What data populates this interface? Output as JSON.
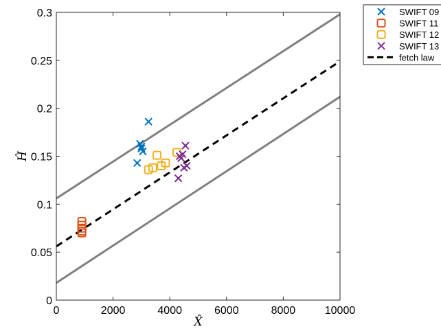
{
  "chart_data": {
    "type": "scatter",
    "title": "",
    "xlabel": "X̂",
    "ylabel": "Ĥ",
    "xlim": [
      0,
      10000
    ],
    "ylim": [
      0,
      0.3
    ],
    "xticks": [
      0,
      2000,
      4000,
      6000,
      8000,
      10000
    ],
    "xtick_labels": [
      "0",
      "2000",
      "4000",
      "6000",
      "8000",
      "10000"
    ],
    "yticks": [
      0,
      0.05,
      0.1,
      0.15,
      0.2,
      0.25,
      0.3
    ],
    "ytick_labels": [
      "0",
      "0.05",
      "0.1",
      "0.15",
      "0.2",
      "0.25",
      "0.3"
    ],
    "grid": false,
    "legend_position": "outside-top-right",
    "series": [
      {
        "name": "SWIFT 09",
        "marker": "x",
        "color": "#0072BD",
        "points": [
          [
            2850,
            0.143
          ],
          [
            2950,
            0.163
          ],
          [
            3000,
            0.158
          ],
          [
            3050,
            0.155
          ],
          [
            3000,
            0.16
          ],
          [
            3250,
            0.186
          ]
        ]
      },
      {
        "name": "SWIFT 11",
        "marker": "square",
        "color": "#D95319",
        "points": [
          [
            900,
            0.082
          ],
          [
            900,
            0.078
          ],
          [
            900,
            0.075
          ],
          [
            900,
            0.072
          ],
          [
            900,
            0.07
          ]
        ]
      },
      {
        "name": "SWIFT 12",
        "marker": "square",
        "color": "#EDB120",
        "points": [
          [
            3250,
            0.136
          ],
          [
            3400,
            0.138
          ],
          [
            3550,
            0.151
          ],
          [
            3700,
            0.14
          ],
          [
            3850,
            0.143
          ],
          [
            4250,
            0.154
          ]
        ]
      },
      {
        "name": "SWIFT 13",
        "marker": "x",
        "color": "#7E2F8E",
        "points": [
          [
            4300,
            0.127
          ],
          [
            4350,
            0.15
          ],
          [
            4400,
            0.148
          ],
          [
            4450,
            0.152
          ],
          [
            4500,
            0.138
          ],
          [
            4550,
            0.161
          ],
          [
            4600,
            0.14
          ]
        ]
      }
    ],
    "lines": [
      {
        "name": "fetch law",
        "style": "dashed",
        "color": "#000000",
        "x": [
          0,
          10000
        ],
        "y": [
          0.056,
          0.249
        ]
      },
      {
        "name": "",
        "style": "solid",
        "color": "#808080",
        "x": [
          0,
          10000
        ],
        "y": [
          0.106,
          0.298
        ]
      },
      {
        "name": "",
        "style": "solid",
        "color": "#808080",
        "x": [
          0,
          10000
        ],
        "y": [
          0.018,
          0.212
        ]
      }
    ],
    "legend": [
      "SWIFT 09",
      "SWIFT 11",
      "SWIFT 12",
      "SWIFT 13",
      "fetch law"
    ]
  }
}
